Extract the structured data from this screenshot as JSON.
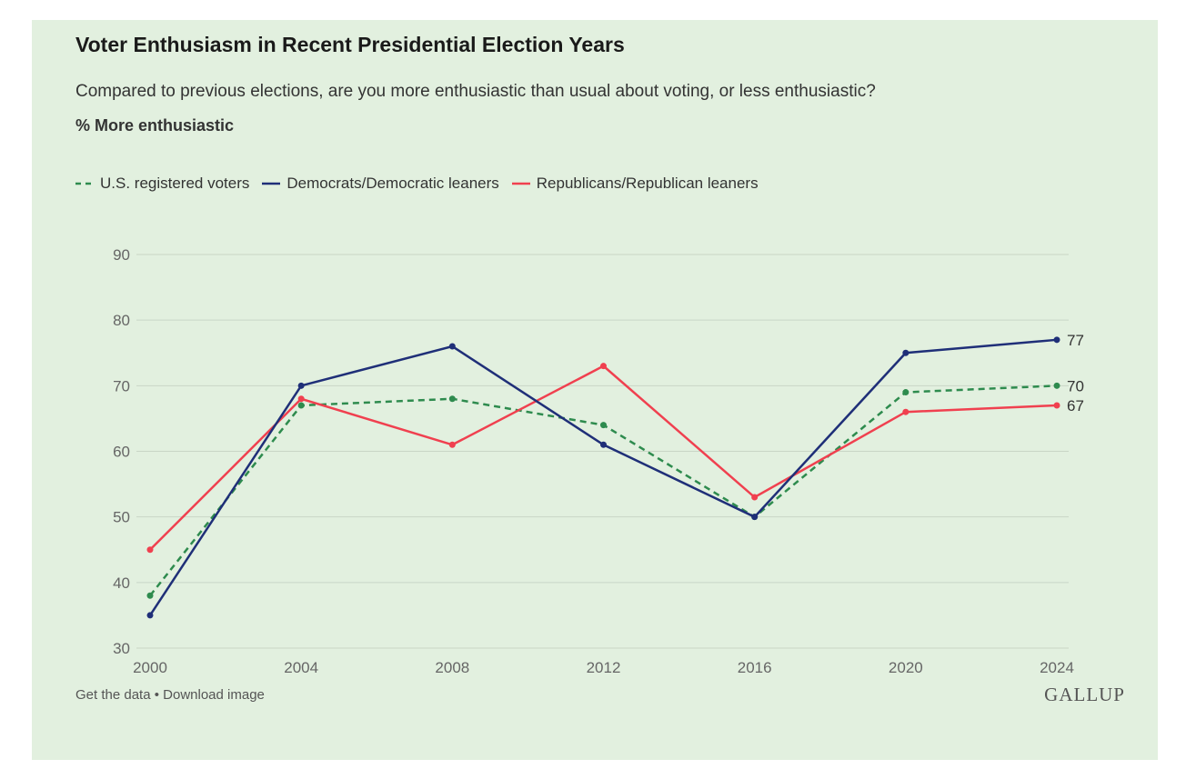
{
  "chart_data": {
    "type": "line",
    "title": "Voter Enthusiasm in Recent Presidential Election Years",
    "subtitle": "Compared to previous elections, are you more enthusiastic than usual about voting, or less enthusiastic?",
    "measure": "% More enthusiastic",
    "xlabel": "",
    "ylabel": "",
    "x": [
      "2000",
      "2004",
      "2008",
      "2012",
      "2016",
      "2020",
      "2024"
    ],
    "ylim": [
      30,
      90
    ],
    "yticks": [
      "30",
      "40",
      "50",
      "60",
      "70",
      "80",
      "90"
    ],
    "grid": true,
    "legend_position": "top-left",
    "series": [
      {
        "name": "U.S. registered voters",
        "color": "#2e8b4e",
        "dashed": true,
        "values": [
          38,
          67,
          68,
          64,
          50,
          69,
          70
        ],
        "end_label": "70"
      },
      {
        "name": "Democrats/Democratic leaners",
        "color": "#1f2f78",
        "dashed": false,
        "values": [
          35,
          70,
          76,
          61,
          50,
          75,
          77
        ],
        "end_label": "77"
      },
      {
        "name": "Republicans/Republican leaners",
        "color": "#f0404f",
        "dashed": false,
        "values": [
          45,
          68,
          61,
          73,
          53,
          66,
          67
        ],
        "end_label": "67"
      }
    ]
  },
  "footer": {
    "get_data": "Get the data",
    "separator": " • ",
    "download": "Download image"
  },
  "brand": "GALLUP"
}
